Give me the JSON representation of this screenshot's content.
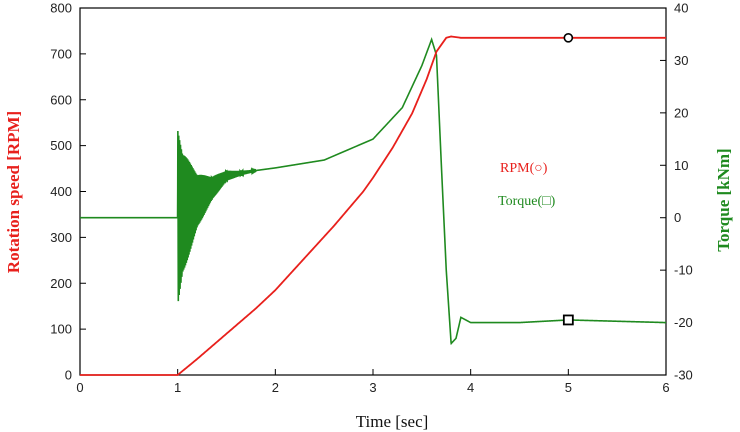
{
  "chart_data": {
    "type": "line",
    "xlabel": "Time [sec]",
    "ylabel_left": "Rotation speed [RPM]",
    "ylabel_right": "Torque [kNm]",
    "xlim": [
      0,
      6
    ],
    "ylim_left": [
      0,
      800
    ],
    "ylim_right": [
      -30,
      40
    ],
    "x_ticks": [
      0,
      1,
      2,
      3,
      4,
      5,
      6
    ],
    "y_left_ticks": [
      0,
      100,
      200,
      300,
      400,
      500,
      600,
      700,
      800
    ],
    "y_right_ticks": [
      -30,
      -20,
      -10,
      0,
      10,
      20,
      30,
      40
    ],
    "grid": false,
    "legend_placement": "right",
    "colors": {
      "rpm": "#e8201c",
      "torque": "#1f8a1f",
      "left_label": "#e8201c",
      "right_label": "#1f8a1f"
    },
    "series": [
      {
        "name": "RPM(○)",
        "axis": "left",
        "marker": "circle",
        "marker_at": [
          5.0,
          735
        ],
        "x": [
          0,
          0.5,
          1.0,
          1.2,
          1.5,
          1.8,
          2.0,
          2.3,
          2.6,
          2.9,
          3.0,
          3.2,
          3.4,
          3.55,
          3.65,
          3.75,
          3.8,
          3.9,
          4.0,
          4.5,
          5.0,
          5.5,
          6.0
        ],
        "values": [
          0,
          0,
          0,
          35,
          90,
          145,
          185,
          255,
          325,
          400,
          430,
          495,
          570,
          645,
          705,
          735,
          738,
          735,
          735,
          735,
          735,
          735,
          735
        ]
      },
      {
        "name": "Torque(□)",
        "axis": "right",
        "marker": "square",
        "marker_at": [
          5.0,
          -19.5
        ],
        "x": [
          0,
          0.5,
          1.0,
          1.5,
          1.8,
          2.0,
          2.5,
          3.0,
          3.3,
          3.5,
          3.6,
          3.65,
          3.7,
          3.75,
          3.8,
          3.85,
          3.9,
          4.0,
          4.5,
          5.0,
          6.0
        ],
        "values": [
          0,
          0,
          0,
          8,
          9,
          9.5,
          11,
          15,
          21,
          29,
          34,
          31,
          10,
          -10,
          -24,
          -23,
          -19,
          -20,
          -20,
          -19.5,
          -20
        ],
        "oscillation": {
          "t_start": 1.0,
          "t_end": 1.8,
          "initial_amplitude": 17
        }
      }
    ]
  }
}
